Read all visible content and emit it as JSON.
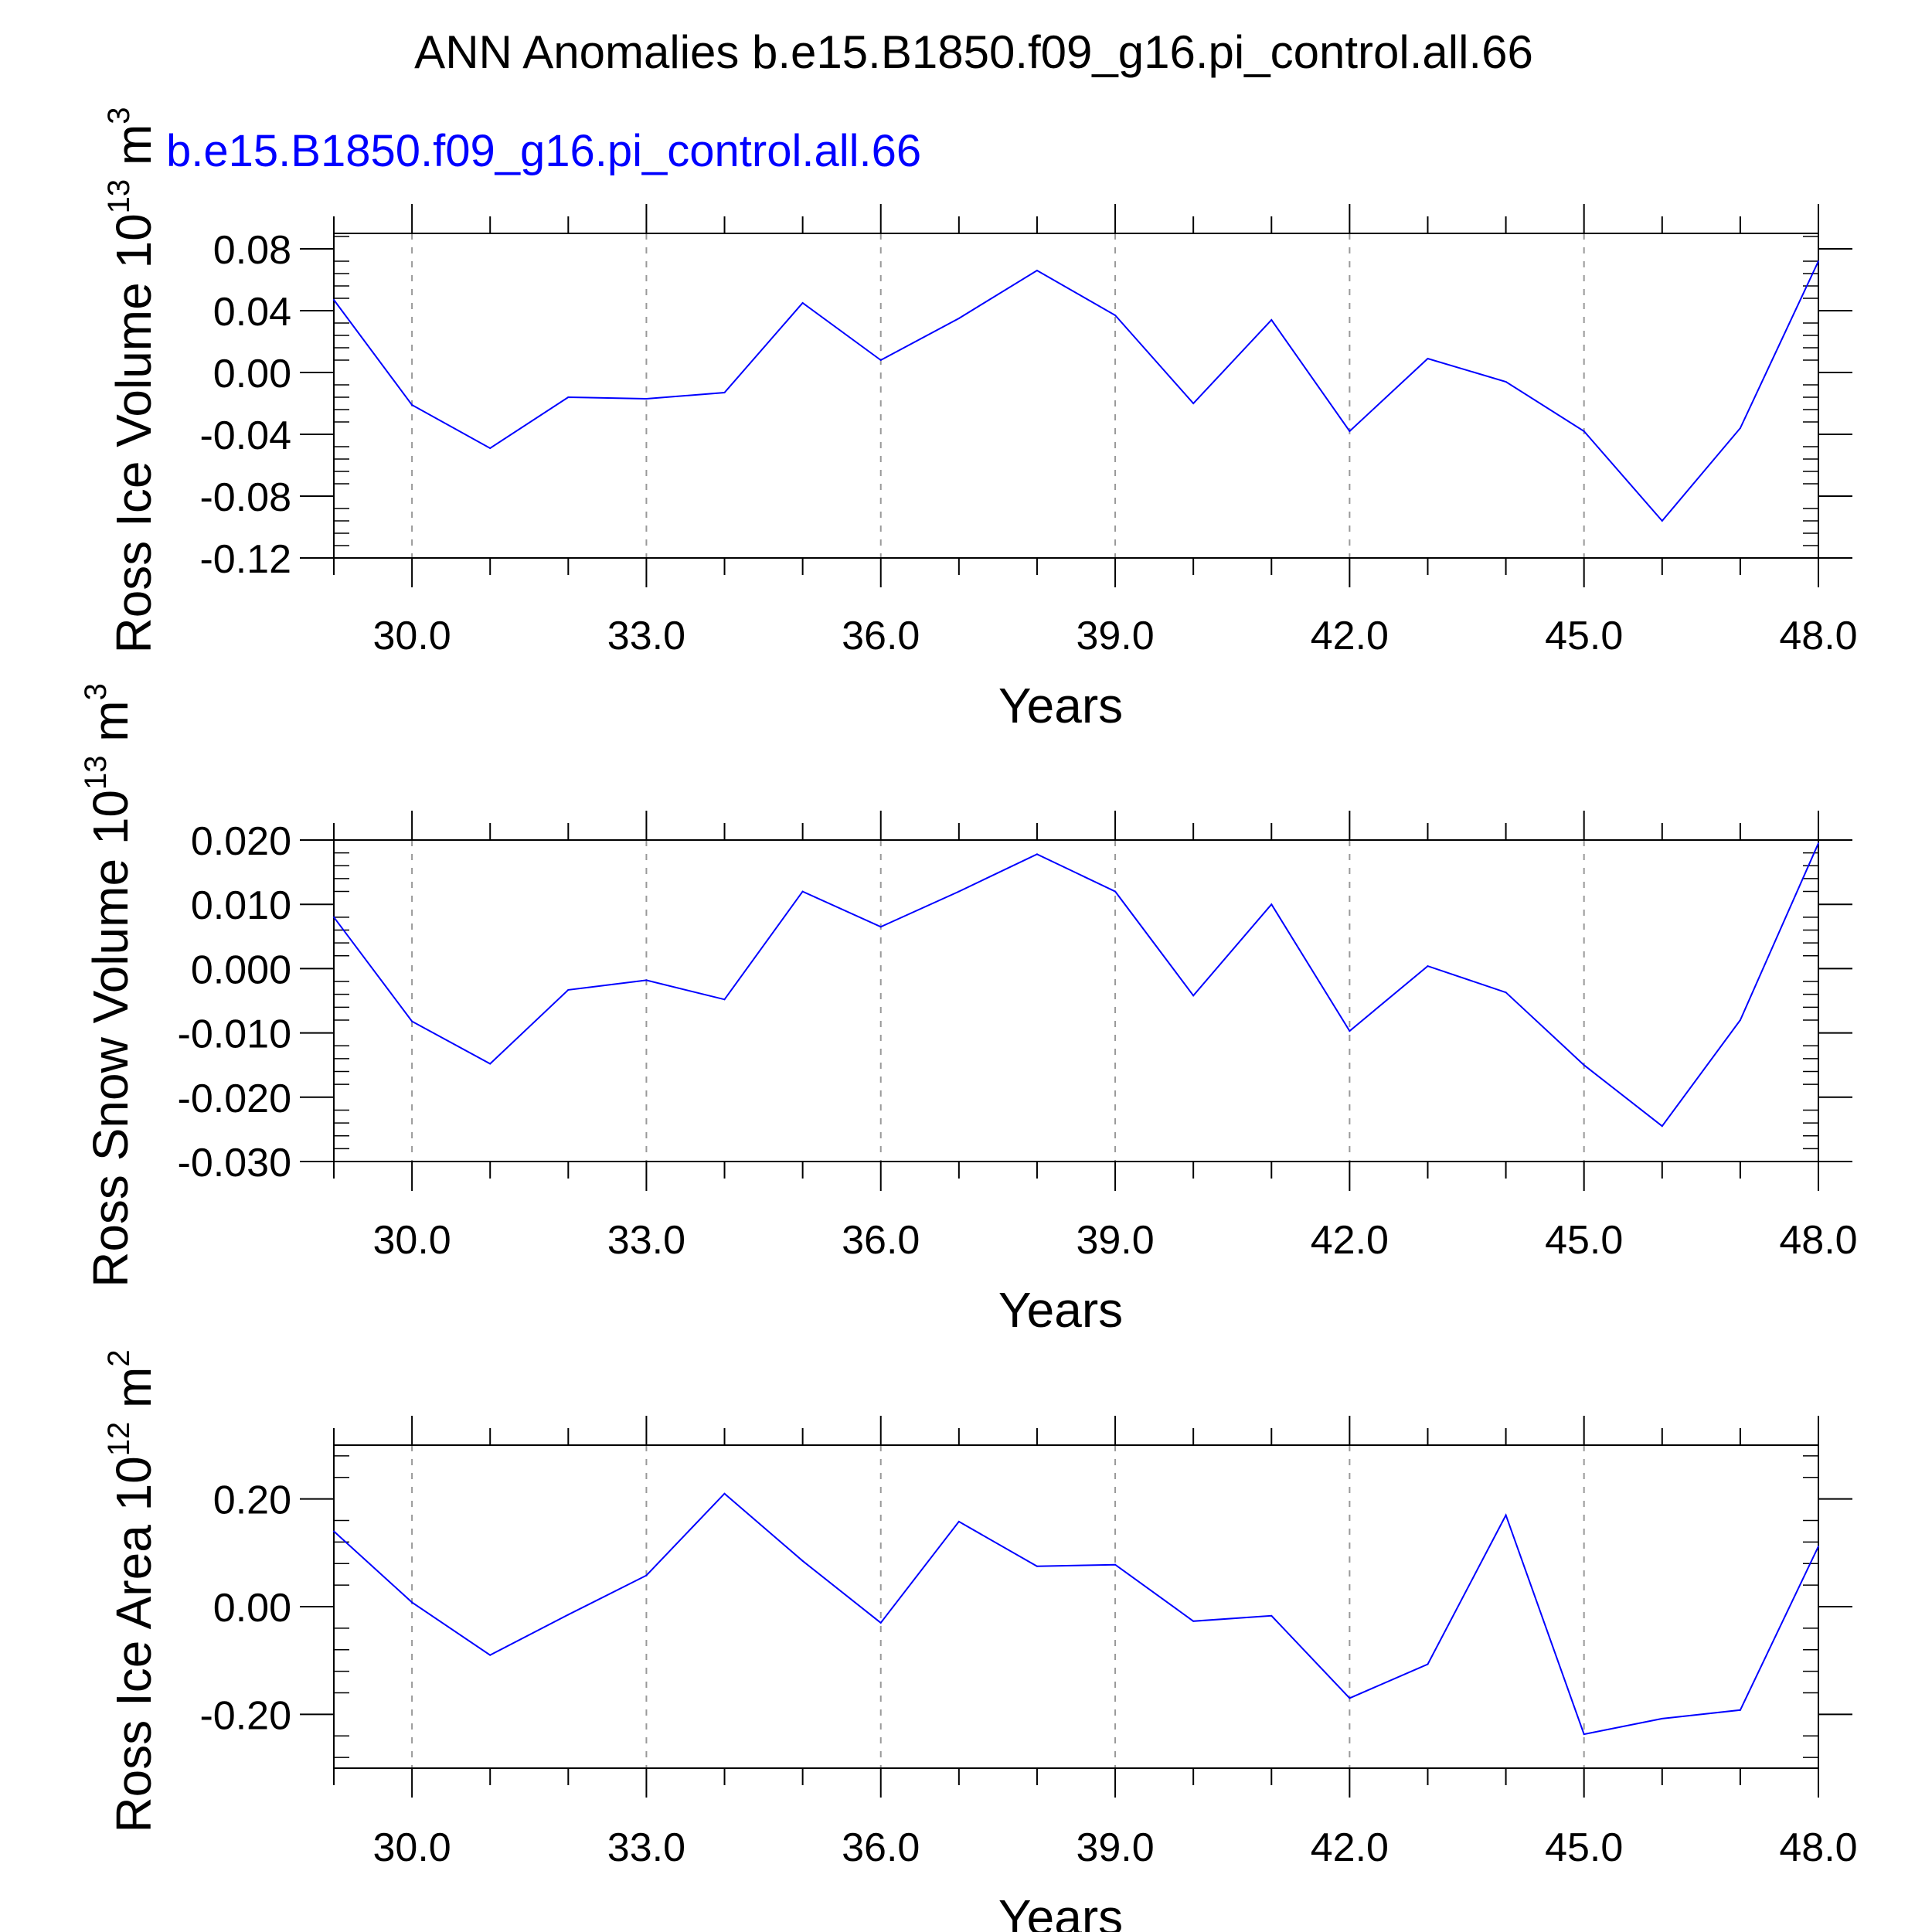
{
  "title": "ANN Anomalies b.e15.B1850.f09_g16.pi_control.all.66",
  "legend": {
    "label": "b.e15.B1850.f09_g16.pi_control.all.66",
    "color": "#0000ff"
  },
  "colors": {
    "line": "#0000ff",
    "axis": "#000000",
    "grid": "#999999"
  },
  "chart_data": [
    {
      "type": "line",
      "title": "",
      "xlabel": "Years",
      "ylabel": {
        "name": "Ross Ice Volume",
        "unit_base": "10",
        "unit_exp": "13",
        "unit_suffix": "m",
        "unit_suffix_exp": "3"
      },
      "xlim": [
        29,
        48
      ],
      "ylim": [
        -0.12,
        0.09
      ],
      "xticks": [
        30,
        33,
        36,
        39,
        42,
        45,
        48
      ],
      "xtick_labels": [
        "30.0",
        "33.0",
        "36.0",
        "39.0",
        "42.0",
        "45.0",
        "48.0"
      ],
      "yticks": [
        -0.12,
        -0.08,
        -0.04,
        0.0,
        0.04,
        0.08
      ],
      "ytick_labels": [
        "-0.12",
        "-0.08",
        "-0.04",
        "0.00",
        "0.04",
        "0.08"
      ],
      "grid": "vertical dashed at major x ticks",
      "series": [
        {
          "name": "b.e15.B1850.f09_g16.pi_control.all.66",
          "x": [
            29,
            30,
            31,
            32,
            33,
            34,
            35,
            36,
            37,
            38,
            39,
            40,
            41,
            42,
            43,
            44,
            45,
            46,
            47,
            48
          ],
          "y": [
            0.047,
            -0.021,
            -0.049,
            -0.016,
            -0.017,
            -0.013,
            0.045,
            0.008,
            0.035,
            0.066,
            0.037,
            -0.02,
            0.034,
            -0.038,
            0.009,
            -0.006,
            -0.038,
            -0.096,
            -0.036,
            0.072
          ]
        }
      ]
    },
    {
      "type": "line",
      "title": "",
      "xlabel": "Years",
      "ylabel": {
        "name": "Ross Snow Volume",
        "unit_base": "10",
        "unit_exp": "13",
        "unit_suffix": "m",
        "unit_suffix_exp": "3"
      },
      "xlim": [
        29,
        48
      ],
      "ylim": [
        -0.03,
        0.02
      ],
      "xticks": [
        30,
        33,
        36,
        39,
        42,
        45,
        48
      ],
      "xtick_labels": [
        "30.0",
        "33.0",
        "36.0",
        "39.0",
        "42.0",
        "45.0",
        "48.0"
      ],
      "yticks": [
        -0.03,
        -0.02,
        -0.01,
        0.0,
        0.01,
        0.02
      ],
      "ytick_labels": [
        "-0.030",
        "-0.020",
        "-0.010",
        "0.000",
        "0.010",
        "0.020"
      ],
      "grid": "vertical dashed at major x ticks",
      "series": [
        {
          "name": "b.e15.B1850.f09_g16.pi_control.all.66",
          "x": [
            29,
            30,
            31,
            32,
            33,
            34,
            35,
            36,
            37,
            38,
            39,
            40,
            41,
            42,
            43,
            44,
            45,
            46,
            47,
            48
          ],
          "y": [
            0.008,
            -0.0082,
            -0.0148,
            -0.0033,
            -0.0018,
            -0.0048,
            0.012,
            0.0065,
            0.012,
            0.0178,
            0.012,
            -0.0042,
            0.01,
            -0.0097,
            0.0004,
            -0.0037,
            -0.015,
            -0.0245,
            -0.008,
            0.0195
          ]
        }
      ]
    },
    {
      "type": "line",
      "title": "",
      "xlabel": "Years",
      "ylabel": {
        "name": "Ross Ice Area",
        "unit_base": "10",
        "unit_exp": "12",
        "unit_suffix": "m",
        "unit_suffix_exp": "2"
      },
      "xlim": [
        29,
        48
      ],
      "ylim": [
        -0.3,
        0.3
      ],
      "xticks": [
        30,
        33,
        36,
        39,
        42,
        45,
        48
      ],
      "xtick_labels": [
        "30.0",
        "33.0",
        "36.0",
        "39.0",
        "42.0",
        "45.0",
        "48.0"
      ],
      "yticks": [
        -0.2,
        0.0,
        0.2
      ],
      "ytick_labels": [
        "-0.20",
        "0.00",
        "0.20"
      ],
      "grid": "vertical dashed at major x ticks",
      "series": [
        {
          "name": "b.e15.B1850.f09_g16.pi_control.all.66",
          "x": [
            29,
            30,
            31,
            32,
            33,
            34,
            35,
            36,
            37,
            38,
            39,
            40,
            41,
            42,
            43,
            44,
            45,
            46,
            47,
            48
          ],
          "y": [
            0.14,
            0.008,
            -0.09,
            -0.015,
            0.058,
            0.21,
            0.085,
            -0.03,
            0.158,
            0.075,
            0.078,
            -0.027,
            -0.017,
            -0.17,
            -0.107,
            0.17,
            -0.237,
            -0.208,
            -0.192,
            0.112
          ]
        }
      ]
    }
  ]
}
